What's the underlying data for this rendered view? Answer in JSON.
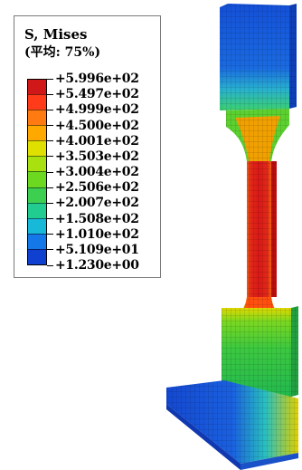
{
  "legend": {
    "title": "S, Mises",
    "subtitle": "(平均: 75%)",
    "colors": [
      "#d01818",
      "#ff3b1a",
      "#ff7a10",
      "#ffa800",
      "#e0e000",
      "#a8e010",
      "#6cd820",
      "#3ccf50",
      "#22cc90",
      "#18b8d8",
      "#1478e8",
      "#1040d0"
    ],
    "values": [
      "+5.996e+02",
      "+5.497e+02",
      "+4.999e+02",
      "+4.500e+02",
      "+4.001e+02",
      "+3.503e+02",
      "+3.004e+02",
      "+2.506e+02",
      "+2.007e+02",
      "+1.508e+02",
      "+1.010e+02",
      "+5.109e+01",
      "+1.230e+00"
    ]
  }
}
